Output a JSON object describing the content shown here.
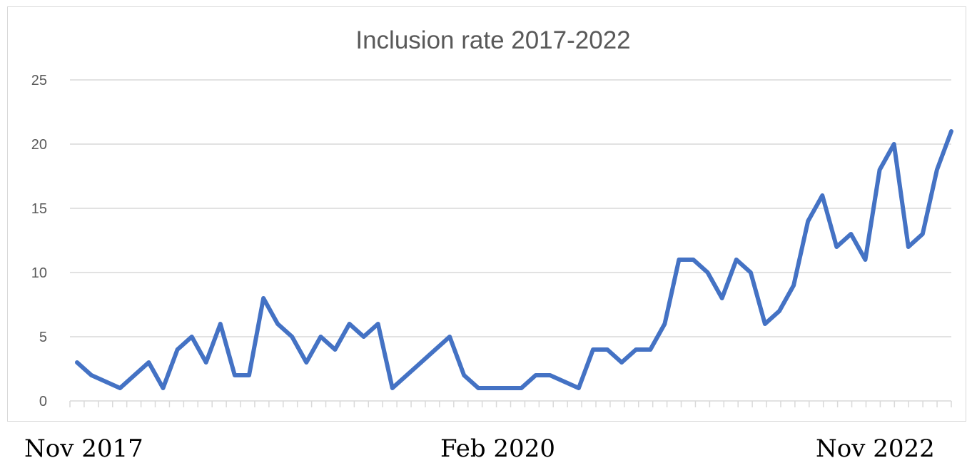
{
  "chart_data": {
    "type": "line",
    "title": "Inclusion rate 2017-2022",
    "xlabel": "",
    "ylabel": "",
    "ylim": [
      0,
      25
    ],
    "yticks": [
      0,
      5,
      10,
      15,
      20,
      25
    ],
    "grid": true,
    "series": [
      {
        "values": [
          3,
          2,
          1.5,
          1,
          2,
          3,
          1,
          4,
          5,
          3,
          6,
          2,
          2,
          8,
          6,
          5,
          3,
          5,
          4,
          6,
          5,
          6,
          1,
          2,
          3,
          4,
          5,
          2,
          1,
          1,
          1,
          1,
          2,
          2,
          1.5,
          1,
          4,
          4,
          3,
          4,
          4,
          6,
          11,
          11,
          10,
          8,
          11,
          10,
          6,
          7,
          9,
          14,
          16,
          12,
          13,
          11,
          18,
          20,
          12,
          13,
          18,
          21
        ]
      }
    ],
    "color": "#4472c4",
    "x_tick_count": 62
  },
  "date_labels": {
    "start": "Nov 2017",
    "middle": "Feb 2020",
    "end": "Nov 2022"
  }
}
